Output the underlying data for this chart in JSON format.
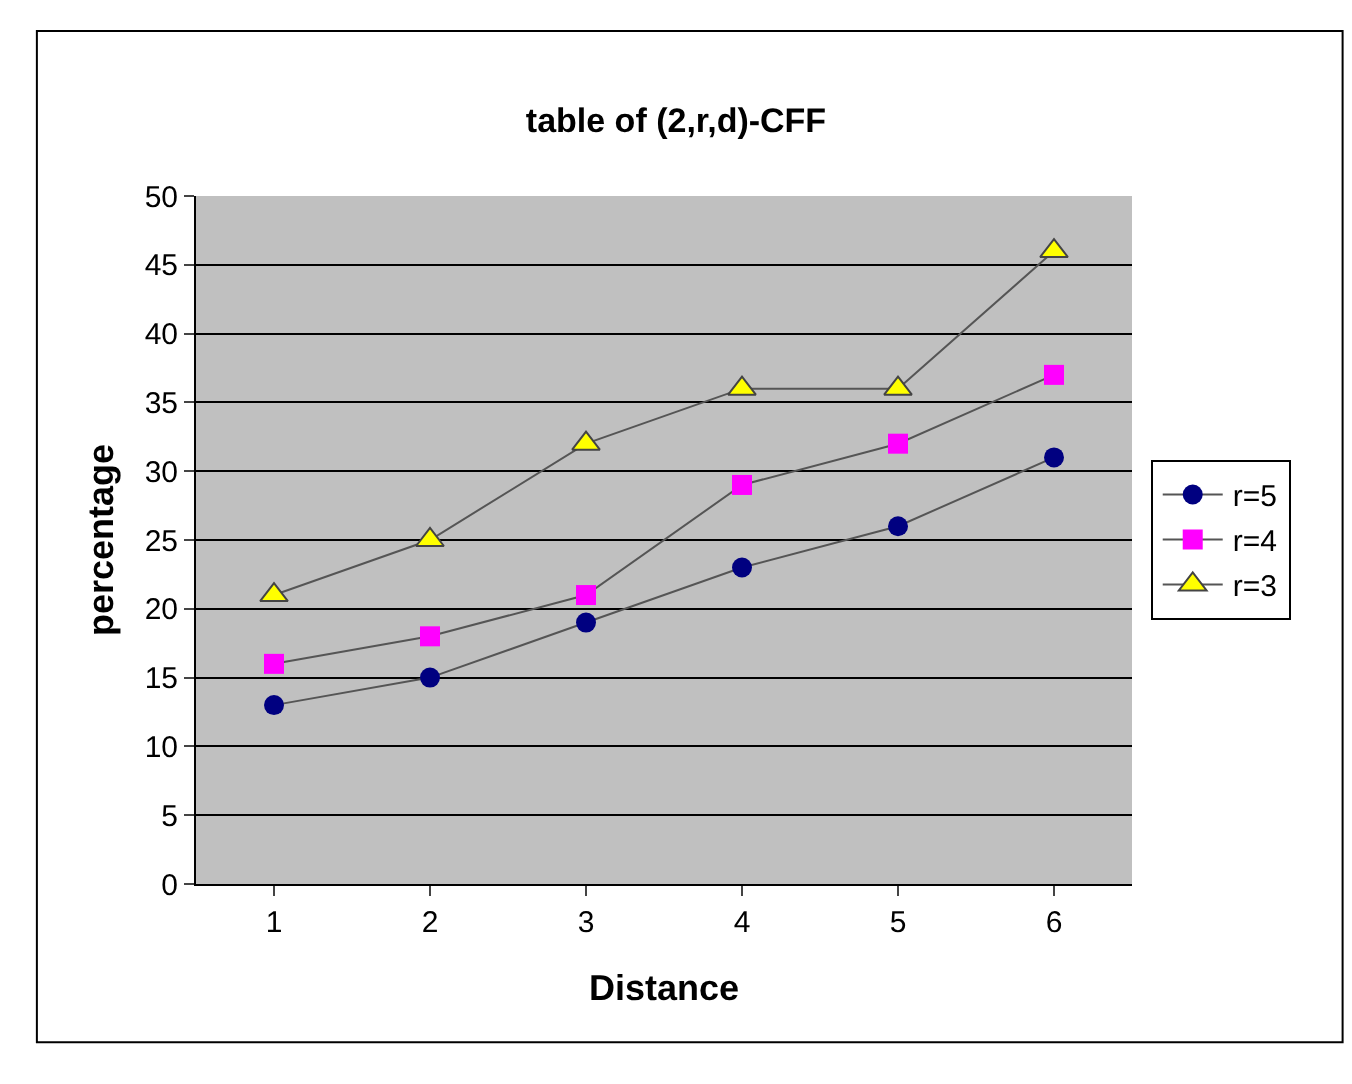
{
  "chart_data": {
    "type": "line",
    "title": "table of (2,r,d)-CFF",
    "xlabel": "Distance",
    "ylabel": "percentage",
    "categories": [
      "1",
      "2",
      "3",
      "4",
      "5",
      "6"
    ],
    "series": [
      {
        "name": "r=5",
        "color": "#000080",
        "marker": "circle",
        "values": [
          13,
          15,
          19,
          23,
          26,
          31
        ]
      },
      {
        "name": "r=4",
        "color": "#ff00ff",
        "marker": "square",
        "values": [
          16,
          18,
          21,
          29,
          32,
          37
        ]
      },
      {
        "name": "r=3",
        "color": "#ffff00",
        "marker": "triangle",
        "values": [
          21,
          25,
          32,
          36,
          36,
          46
        ]
      }
    ],
    "ylim": [
      0,
      50
    ],
    "yticks": [
      0,
      5,
      10,
      15,
      20,
      25,
      30,
      35,
      40,
      45,
      50
    ],
    "grid": "y",
    "legend": "right",
    "line_style": "solid"
  }
}
